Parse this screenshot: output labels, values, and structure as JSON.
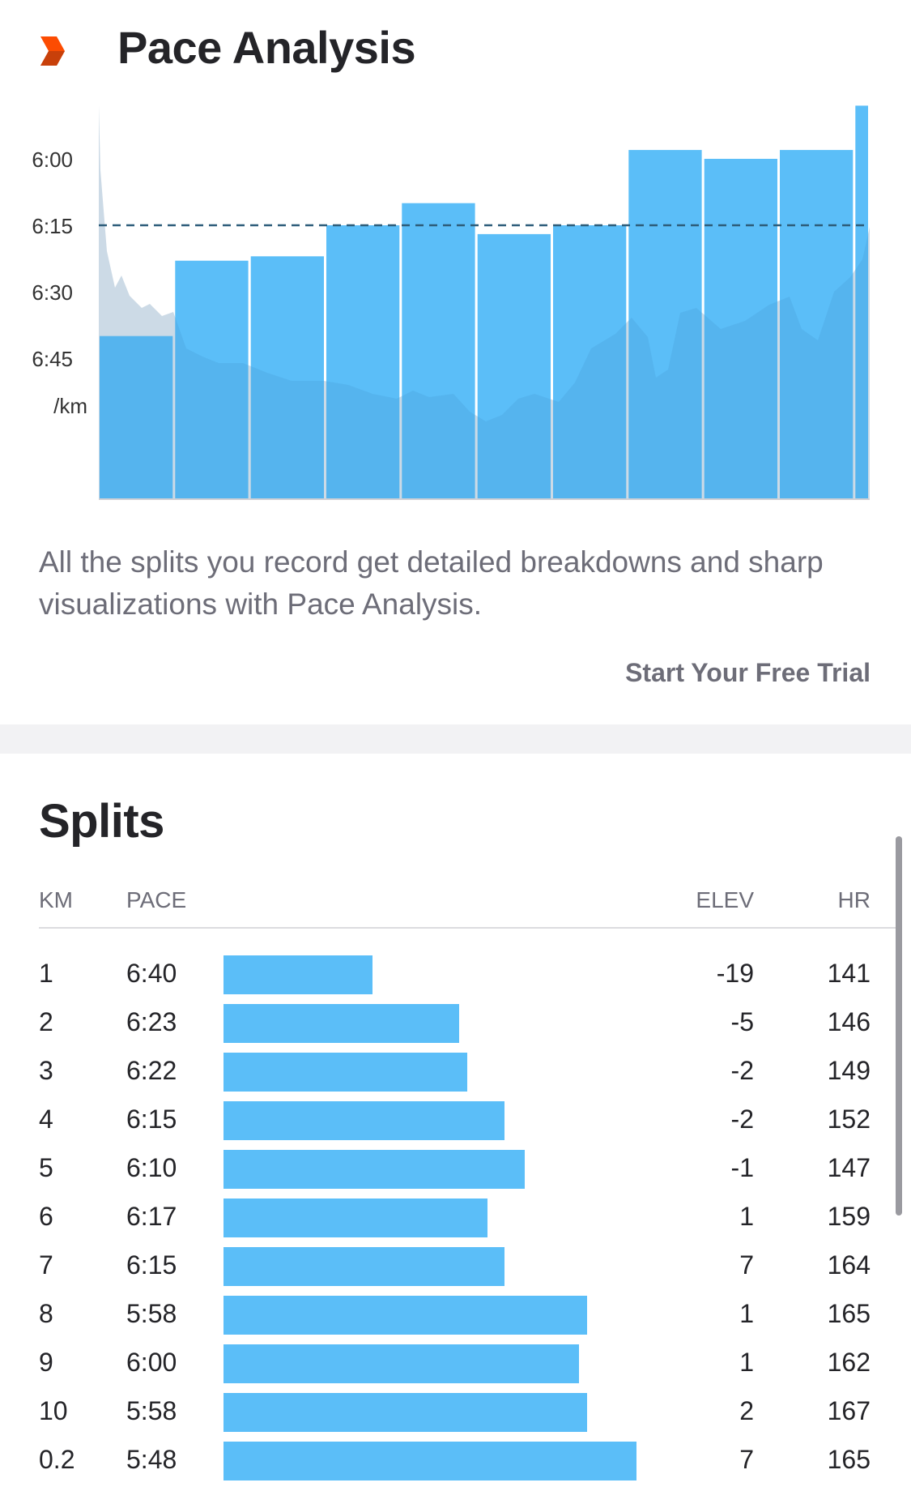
{
  "pace_analysis": {
    "title": "Pace Analysis",
    "description": "All the splits you record get detailed breakdowns and sharp visualizations with Pace Analysis.",
    "cta_label": "Start Your Free Trial",
    "icon": "chevron-logo-icon",
    "colors": {
      "bar": "#5bbef8",
      "accent": "#fc4c02",
      "average_line": "#2e5d7a"
    }
  },
  "chart_data": {
    "type": "bar",
    "title": "",
    "xlabel": "",
    "ylabel": "/km",
    "y_ticks": [
      "6:00",
      "6:15",
      "6:30",
      "6:45"
    ],
    "y_unit_label": "/km",
    "average_pace_seconds": 375,
    "ylim_seconds": [
      365,
      420
    ],
    "series": [
      {
        "distance_km": 1,
        "pace_seconds": 400
      },
      {
        "distance_km": 1,
        "pace_seconds": 383
      },
      {
        "distance_km": 1,
        "pace_seconds": 382
      },
      {
        "distance_km": 1,
        "pace_seconds": 375
      },
      {
        "distance_km": 1,
        "pace_seconds": 370
      },
      {
        "distance_km": 1,
        "pace_seconds": 377
      },
      {
        "distance_km": 1,
        "pace_seconds": 375
      },
      {
        "distance_km": 1,
        "pace_seconds": 358
      },
      {
        "distance_km": 1,
        "pace_seconds": 360
      },
      {
        "distance_km": 1,
        "pace_seconds": 358
      },
      {
        "distance_km": 0.2,
        "pace_seconds": 348
      }
    ]
  },
  "splits": {
    "title": "Splits",
    "headers": {
      "km": "KM",
      "pace": "PACE",
      "elev": "ELEV",
      "hr": "HR"
    },
    "rows": [
      {
        "km": "1",
        "pace": "6:40",
        "elev": "-19",
        "hr": "141",
        "bar_fraction": 0.36
      },
      {
        "km": "2",
        "pace": "6:23",
        "elev": "-5",
        "hr": "146",
        "bar_fraction": 0.57
      },
      {
        "km": "3",
        "pace": "6:22",
        "elev": "-2",
        "hr": "149",
        "bar_fraction": 0.59
      },
      {
        "km": "4",
        "pace": "6:15",
        "elev": "-2",
        "hr": "152",
        "bar_fraction": 0.68
      },
      {
        "km": "5",
        "pace": "6:10",
        "elev": "-1",
        "hr": "147",
        "bar_fraction": 0.73
      },
      {
        "km": "6",
        "pace": "6:17",
        "elev": "1",
        "hr": "159",
        "bar_fraction": 0.64
      },
      {
        "km": "7",
        "pace": "6:15",
        "elev": "7",
        "hr": "164",
        "bar_fraction": 0.68
      },
      {
        "km": "8",
        "pace": "5:58",
        "elev": "1",
        "hr": "165",
        "bar_fraction": 0.88
      },
      {
        "km": "9",
        "pace": "6:00",
        "elev": "1",
        "hr": "162",
        "bar_fraction": 0.86
      },
      {
        "km": "10",
        "pace": "5:58",
        "elev": "2",
        "hr": "167",
        "bar_fraction": 0.88
      },
      {
        "km": "0.2",
        "pace": "5:48",
        "elev": "7",
        "hr": "165",
        "bar_fraction": 1.0
      }
    ]
  }
}
